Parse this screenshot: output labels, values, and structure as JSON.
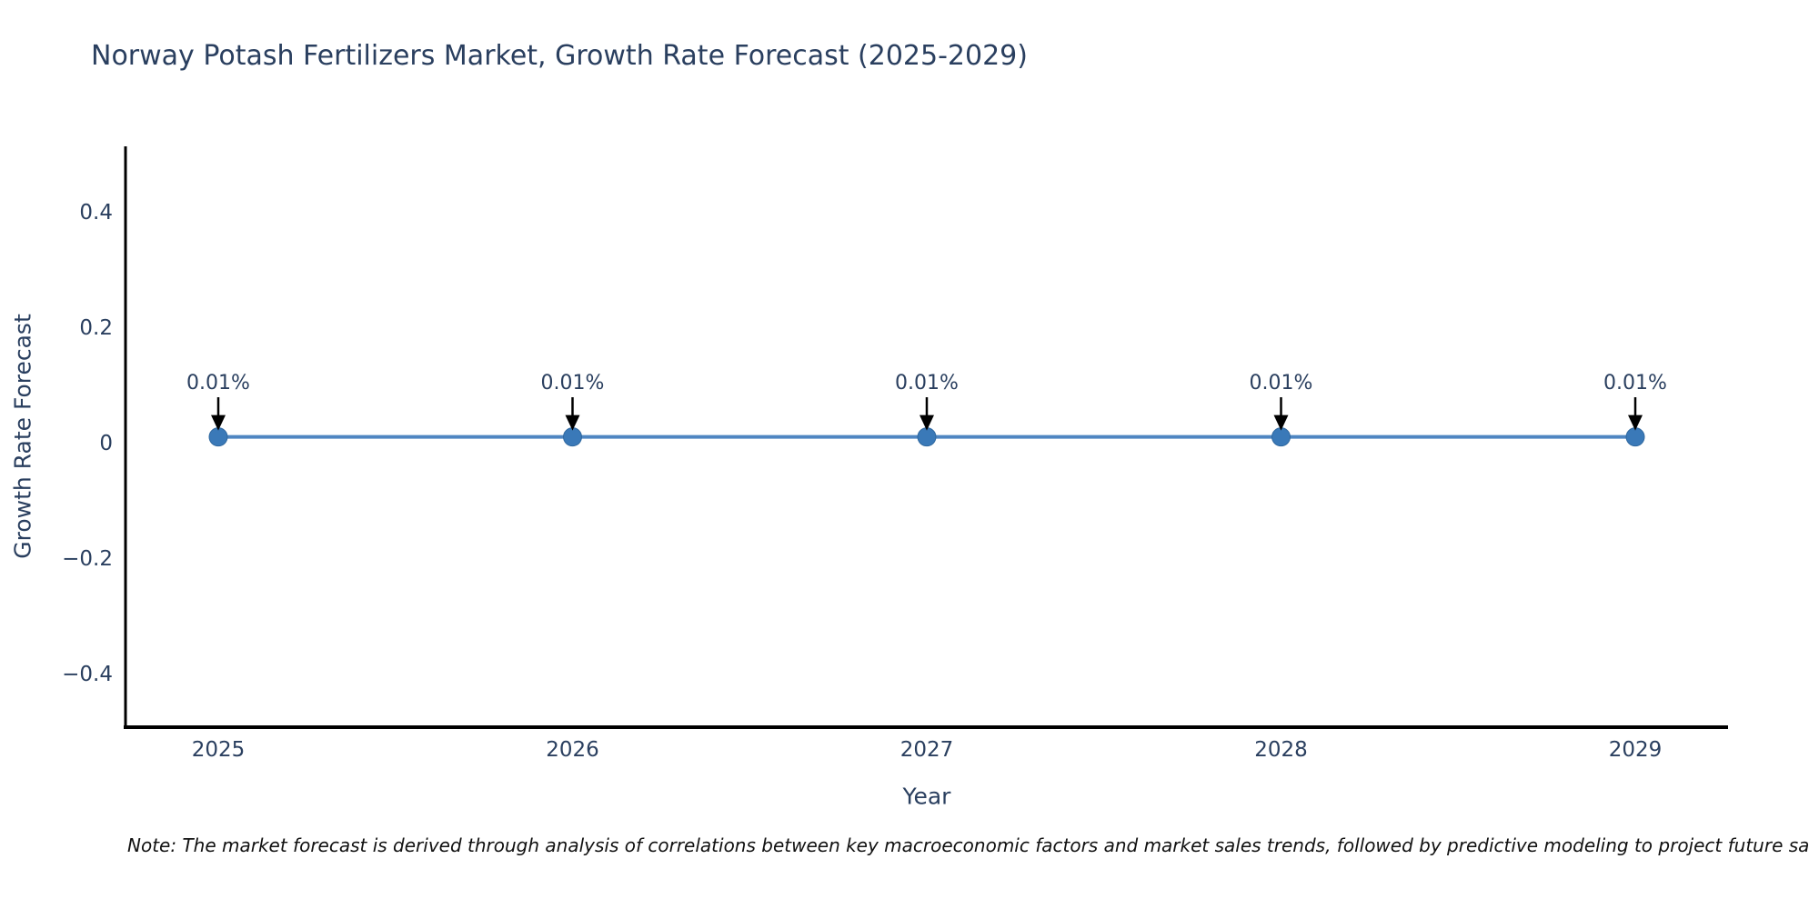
{
  "title": "Norway Potash Fertilizers Market, Growth Rate Forecast (2025-2029)",
  "note": "Note: The market forecast is derived through analysis of correlations between key macroeconomic factors and market sales trends, followed by predictive modeling to project future sa",
  "chart_data": {
    "type": "line",
    "x": [
      "2025",
      "2026",
      "2027",
      "2028",
      "2029"
    ],
    "series": [
      {
        "name": "Growth Rate Forecast",
        "values": [
          0.01,
          0.01,
          0.01,
          0.01,
          0.01
        ]
      }
    ],
    "point_labels": [
      "0.01%",
      "0.01%",
      "0.01%",
      "0.01%",
      "0.01%"
    ],
    "title": "Norway Potash Fertilizers Market, Growth Rate Forecast (2025-2029)",
    "xlabel": "Year",
    "ylabel": "Growth Rate Forecast",
    "yticks": [
      0.4,
      0.2,
      0,
      -0.2,
      -0.4
    ],
    "ytick_labels": [
      "0.4",
      "0.2",
      "0",
      "−0.2",
      "−0.4"
    ],
    "ylim": [
      -0.49,
      0.51
    ],
    "grid": false,
    "legend_position": "none",
    "annotation_arrow_direction": "down",
    "colors": {
      "line": "#4f86c2",
      "marker": "#3a79b8",
      "marker_edge": "#2f689f",
      "text": "#2a3f5f",
      "axis_line": "#000000",
      "arrow": "#000000",
      "note_text": "#111111",
      "background": "#ffffff"
    }
  }
}
